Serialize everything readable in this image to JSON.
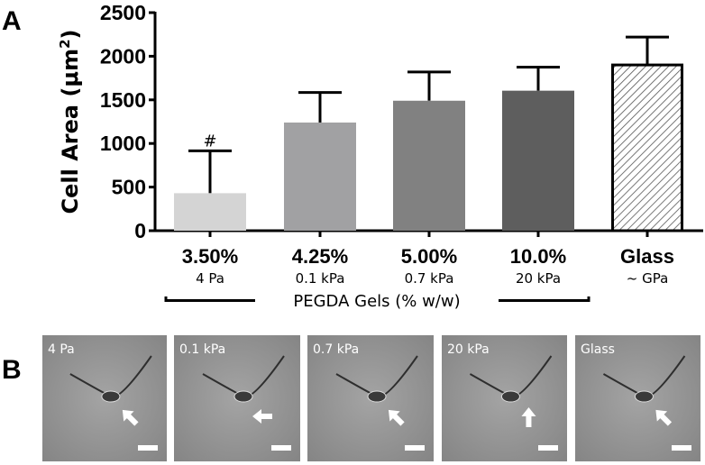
{
  "panel_a_label": "A",
  "panel_b_label": "B",
  "chart_data": {
    "type": "bar",
    "title": "",
    "xlabel": "PEGDA Gels (% w/w)",
    "ylabel": "Cell Area (μm²)",
    "ylabel_main": "Cell Area (",
    "ylabel_unit": "μm",
    "ylabel_sup": "2",
    "ylabel_close": ")",
    "ylim": [
      0,
      2500
    ],
    "yticks": [
      "0",
      "500",
      "1000",
      "1500",
      "2000",
      "2500"
    ],
    "categories": [
      "3.50%",
      "4.25%",
      "5.00%",
      "10.0%",
      "Glass"
    ],
    "stiffness": [
      "4 Pa",
      "0.1 kPa",
      "0.7 kPa",
      "20 kPa",
      "~ GPa"
    ],
    "values": [
      430,
      1240,
      1490,
      1605,
      1900
    ],
    "error_upper": [
      915,
      1585,
      1820,
      1875,
      2220
    ],
    "colors": [
      "#d4d4d4",
      "#a1a1a3",
      "#818181",
      "#5e5e5e",
      "hatched"
    ],
    "annotations": [
      {
        "category": "3.50%",
        "text": "#"
      }
    ]
  },
  "micrographs": [
    {
      "label": "4 Pa",
      "arrow": "up-left"
    },
    {
      "label": "0.1 kPa",
      "arrow": "left"
    },
    {
      "label": "0.7 kPa",
      "arrow": "up-left"
    },
    {
      "label": "20 kPa",
      "arrow": "up"
    },
    {
      "label": "Glass",
      "arrow": "up-left"
    }
  ]
}
